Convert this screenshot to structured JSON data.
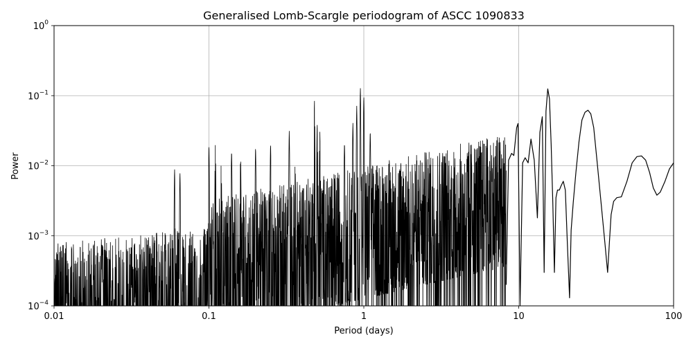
{
  "chart_data": {
    "type": "line",
    "title": "Generalised Lomb-Scargle periodogram of ASCC 1090833",
    "xlabel": "Period (days)",
    "ylabel": "Power",
    "xscale": "log",
    "yscale": "log",
    "xlim": [
      0.01,
      100
    ],
    "ylim": [
      0.0001,
      1
    ],
    "grid": true,
    "x_ticks": [
      {
        "value": 0.01,
        "label": "0.01"
      },
      {
        "value": 0.1,
        "label": "0.1"
      },
      {
        "value": 1,
        "label": "1"
      },
      {
        "value": 10,
        "label": "10"
      },
      {
        "value": 100,
        "label": "100"
      }
    ],
    "y_ticks": [
      {
        "value": 0.0001,
        "base": "10",
        "exp": "−4"
      },
      {
        "value": 0.001,
        "base": "10",
        "exp": "−3"
      },
      {
        "value": 0.01,
        "base": "10",
        "exp": "−2"
      },
      {
        "value": 0.1,
        "base": "10",
        "exp": "−1"
      },
      {
        "value": 1,
        "base": "10",
        "exp": "0"
      }
    ],
    "line_color": "#000000",
    "series": [
      {
        "x": [
          8.3,
          8.6,
          9.0,
          9.3,
          9.7,
          9.9,
          10.2,
          10.6,
          11.0,
          11.5,
          12.0,
          12.6,
          13.2,
          13.7,
          14.2,
          14.6,
          15.0,
          15.4,
          15.8,
          16.2,
          16.6,
          17.0,
          17.4,
          17.8,
          18.3,
          18.8,
          19.4,
          20.0,
          20.6,
          21.3,
          21.8,
          22.5,
          23.4,
          24.5,
          25.6,
          26.8,
          28.0,
          29.2,
          30.5,
          32.0,
          34.0,
          36.0,
          37.5,
          38.5,
          39.5,
          41.0,
          43.0,
          46.0,
          50.0,
          54.0,
          58.0,
          62.0,
          66.0,
          70.0,
          74.0,
          78.0,
          82.0,
          88.0,
          94.0,
          100.0
        ],
        "y": [
          0.0002,
          0.012,
          0.015,
          0.014,
          0.035,
          0.04,
          0.0001,
          0.011,
          0.013,
          0.011,
          0.024,
          0.012,
          0.0018,
          0.03,
          0.05,
          0.0003,
          0.06,
          0.125,
          0.09,
          0.02,
          0.003,
          0.0003,
          0.0035,
          0.0045,
          0.0045,
          0.0052,
          0.006,
          0.0045,
          0.0008,
          0.00013,
          0.0012,
          0.003,
          0.008,
          0.022,
          0.045,
          0.058,
          0.062,
          0.055,
          0.035,
          0.012,
          0.003,
          0.0008,
          0.0003,
          0.0008,
          0.002,
          0.0031,
          0.0035,
          0.0036,
          0.006,
          0.011,
          0.0135,
          0.0138,
          0.012,
          0.008,
          0.0048,
          0.0038,
          0.0042,
          0.006,
          0.009,
          0.011
        ]
      }
    ]
  }
}
